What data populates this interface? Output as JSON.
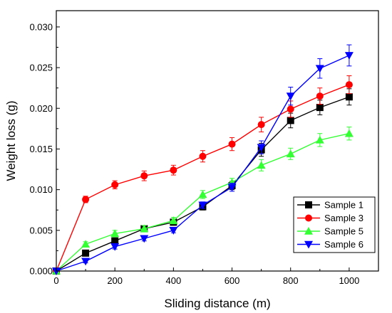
{
  "chart_data": {
    "type": "line",
    "title": "",
    "xlabel": "Sliding distance (m)",
    "ylabel": "Weight loss (g)",
    "xlim": [
      0,
      1100
    ],
    "ylim": [
      0,
      0.032
    ],
    "xticks": [
      0,
      200,
      400,
      600,
      800,
      1000
    ],
    "yticks": [
      0.0,
      0.005,
      0.01,
      0.015,
      0.02,
      0.025,
      0.03
    ],
    "xtick_labels": [
      "0",
      "200",
      "400",
      "600",
      "800",
      "1000"
    ],
    "ytick_labels": [
      "0.000",
      "0.005",
      "0.010",
      "0.015",
      "0.020",
      "0.025",
      "0.030"
    ],
    "grid": false,
    "legend_position": "bottom-right",
    "x": [
      0,
      100,
      200,
      300,
      400,
      500,
      600,
      700,
      800,
      900,
      1000
    ],
    "series": [
      {
        "name": "Sample 1",
        "color": "#000000",
        "marker": "square",
        "values": [
          0.0,
          0.0022,
          0.0037,
          0.0052,
          0.006,
          0.0079,
          0.0105,
          0.0149,
          0.0185,
          0.0201,
          0.0214
        ],
        "errors": [
          0,
          0.0003,
          0.0003,
          0.0003,
          0.0003,
          0.0004,
          0.0005,
          0.0008,
          0.0009,
          0.0009,
          0.001
        ]
      },
      {
        "name": "Sample 3",
        "color": "#ff0000",
        "marker": "circle",
        "values": [
          0.0,
          0.0088,
          0.0106,
          0.0117,
          0.0124,
          0.0141,
          0.0156,
          0.018,
          0.0199,
          0.0215,
          0.0229
        ],
        "errors": [
          0,
          0.0004,
          0.0005,
          0.0006,
          0.0006,
          0.0007,
          0.0008,
          0.0009,
          0.001,
          0.001,
          0.0011
        ]
      },
      {
        "name": "Sample 5",
        "color": "#33ff33",
        "marker": "triangle-up",
        "values": [
          0.0,
          0.0033,
          0.0046,
          0.0052,
          0.0062,
          0.0094,
          0.0109,
          0.013,
          0.0144,
          0.0161,
          0.0169
        ],
        "errors": [
          0,
          0.0003,
          0.0004,
          0.0004,
          0.0004,
          0.0005,
          0.0005,
          0.0007,
          0.0007,
          0.0008,
          0.0008
        ]
      },
      {
        "name": "Sample 6",
        "color": "#0000ff",
        "marker": "triangle-down",
        "values": [
          0.0,
          0.0012,
          0.003,
          0.004,
          0.005,
          0.0081,
          0.0103,
          0.0152,
          0.0215,
          0.0249,
          0.0265
        ],
        "errors": [
          0,
          0.0002,
          0.0003,
          0.0003,
          0.0003,
          0.0004,
          0.0005,
          0.0008,
          0.0011,
          0.0012,
          0.0013
        ]
      }
    ]
  }
}
